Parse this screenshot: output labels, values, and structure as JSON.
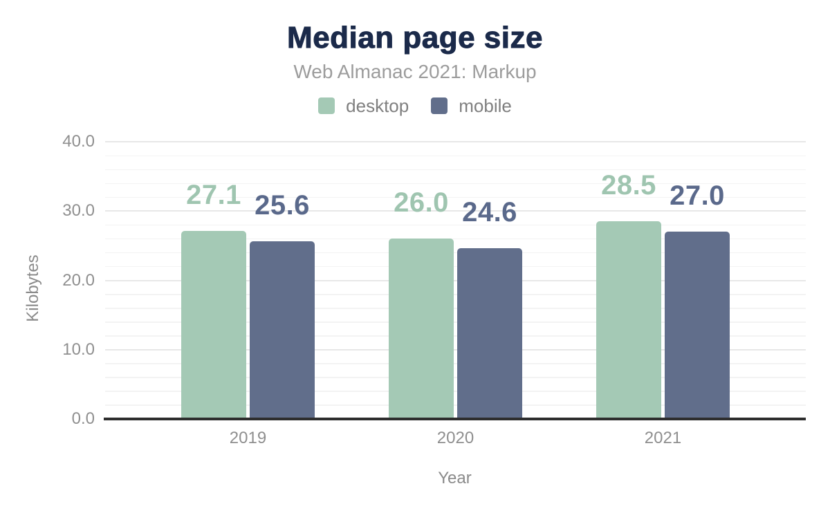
{
  "chart_data": {
    "type": "bar",
    "title": "Median page size",
    "subtitle": "Web Almanac 2021: Markup",
    "xlabel": "Year",
    "ylabel": "Kilobytes",
    "categories": [
      "2019",
      "2020",
      "2021"
    ],
    "series": [
      {
        "name": "desktop",
        "color": "#a4c9b5",
        "label_color": "#9fc5b0",
        "values": [
          27.1,
          26.0,
          28.5
        ]
      },
      {
        "name": "mobile",
        "color": "#616e8b",
        "label_color": "#5a698b",
        "values": [
          25.6,
          24.6,
          27.0
        ]
      }
    ],
    "ylim": [
      0,
      40
    ],
    "yticks": [
      0,
      10,
      20,
      30,
      40
    ],
    "ytick_labels": [
      "0.0",
      "10.0",
      "20.0",
      "30.0",
      "40.0"
    ],
    "y_minor_step": 2,
    "value_label_decimals": 1,
    "grid": "horizontal",
    "legend_position": "top"
  },
  "styles": {
    "background": "#ffffff",
    "title_color": "#1b2a4a",
    "subtitle_color": "#9c9c9c",
    "legend_text_color": "#7f7f7f",
    "axis_text_color": "#8f8f8f",
    "axis_title_color": "#8a8a8a",
    "axis_line_color": "#2e2e2e",
    "major_grid_color": "#e7e7e7",
    "minor_grid_color": "#f3f3f3"
  }
}
